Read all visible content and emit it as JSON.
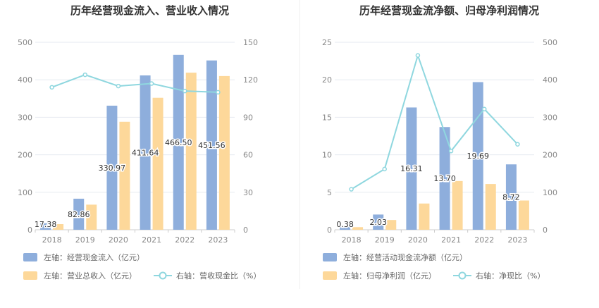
{
  "chart_data": [
    {
      "type": "bar",
      "title": "历年经营现金流入、营业收入情况",
      "categories": [
        "2018",
        "2019",
        "2020",
        "2021",
        "2022",
        "2023"
      ],
      "series": [
        {
          "name": "左轴：经营现金流入（亿元）",
          "axis": "left",
          "type": "bar",
          "values": [
            17.38,
            82.86,
            330.97,
            411.64,
            466.5,
            451.56
          ],
          "labels": [
            "17.38",
            "82.86",
            "330.97",
            "411.64",
            "466.50",
            "451.56"
          ]
        },
        {
          "name": "左轴：营业总收入（亿元）",
          "axis": "left",
          "type": "bar",
          "values": [
            15,
            67,
            288,
            352,
            419,
            410
          ]
        },
        {
          "name": "右轴：营收现金比（%）",
          "axis": "right",
          "type": "line",
          "values": [
            114,
            124,
            115,
            117,
            111,
            110
          ]
        }
      ],
      "ylim_left": [
        0,
        500
      ],
      "yticks_left": [
        0,
        100,
        200,
        300,
        400,
        500
      ],
      "ylim_right": [
        0,
        150
      ],
      "yticks_right": [
        0,
        30,
        60,
        90,
        120,
        150
      ],
      "grid": true,
      "legend": "bottom"
    },
    {
      "type": "bar",
      "title": "历年经营现金流净额、归母净利润情况",
      "categories": [
        "2018",
        "2019",
        "2020",
        "2021",
        "2022",
        "2023"
      ],
      "series": [
        {
          "name": "左轴：经营活动现金流净额（亿元）",
          "axis": "left",
          "type": "bar",
          "values": [
            0.38,
            2.03,
            16.31,
            13.7,
            19.69,
            8.72
          ],
          "labels": [
            "0.38",
            "2.03",
            "16.31",
            "13.70",
            "19.69",
            "8.72"
          ]
        },
        {
          "name": "左轴：归母净利润（亿元）",
          "axis": "left",
          "type": "bar",
          "values": [
            0.35,
            1.3,
            3.5,
            6.5,
            6.1,
            3.9
          ]
        },
        {
          "name": "右轴：净现比（%）",
          "axis": "right",
          "type": "line",
          "values": [
            108,
            162,
            465,
            210,
            322,
            228
          ]
        }
      ],
      "ylim_left": [
        0,
        25
      ],
      "yticks_left": [
        0,
        5,
        10,
        15,
        20,
        25
      ],
      "ylim_right": [
        0,
        500
      ],
      "yticks_right": [
        0,
        100,
        200,
        300,
        400,
        500
      ],
      "grid": true,
      "legend": "bottom"
    }
  ],
  "colors": {
    "bar_primary": "#8eaedc",
    "bar_secondary": "#fdd89a",
    "line": "#8fd7df",
    "grid": "#e6eaf0"
  }
}
